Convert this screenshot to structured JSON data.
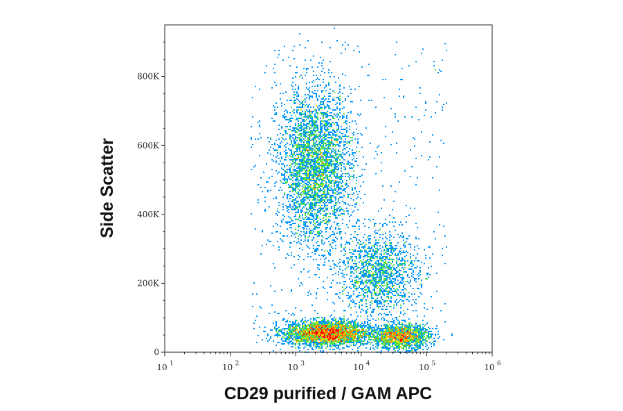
{
  "chart_data": {
    "type": "scatter",
    "subtype": "density dot plot (flow cytometry)",
    "title": "",
    "xlabel": "CD29 purified / GAM APC",
    "ylabel": "Side Scatter",
    "x_scale": "log",
    "xlim": [
      10,
      1000000
    ],
    "ylim": [
      0,
      950000
    ],
    "x_ticks": [
      {
        "value": 10,
        "base": "10",
        "exp": "1"
      },
      {
        "value": 100,
        "base": "10",
        "exp": "2"
      },
      {
        "value": 1000,
        "base": "10",
        "exp": "3"
      },
      {
        "value": 10000,
        "base": "10",
        "exp": "4"
      },
      {
        "value": 100000,
        "base": "10",
        "exp": "5"
      },
      {
        "value": 1000000,
        "base": "10",
        "exp": "6"
      }
    ],
    "y_ticks": [
      {
        "value": 0,
        "label": "0"
      },
      {
        "value": 200000,
        "label": "200K"
      },
      {
        "value": 400000,
        "label": "400K"
      },
      {
        "value": 600000,
        "label": "600K"
      },
      {
        "value": 800000,
        "label": "800K"
      }
    ],
    "grid": false,
    "density_colormap": [
      "#0000ff",
      "#0096ff",
      "#00e0d0",
      "#50e050",
      "#e0e000",
      "#ff8000",
      "#ff0000"
    ],
    "populations": [
      {
        "x_center": 2000,
        "y_center": 540000,
        "x_spread_decades": 0.28,
        "y_spread": 110000,
        "peak_density": "green-yellow"
      },
      {
        "x_center": 3000,
        "y_center": 55000,
        "x_spread_decades": 0.32,
        "y_spread": 18000,
        "peak_density": "red"
      },
      {
        "x_center": 40000,
        "y_center": 45000,
        "x_spread_decades": 0.22,
        "y_spread": 18000,
        "peak_density": "orange"
      },
      {
        "x_center": 18000,
        "y_center": 230000,
        "x_spread_decades": 0.3,
        "y_spread": 60000,
        "peak_density": "cyan"
      }
    ]
  }
}
